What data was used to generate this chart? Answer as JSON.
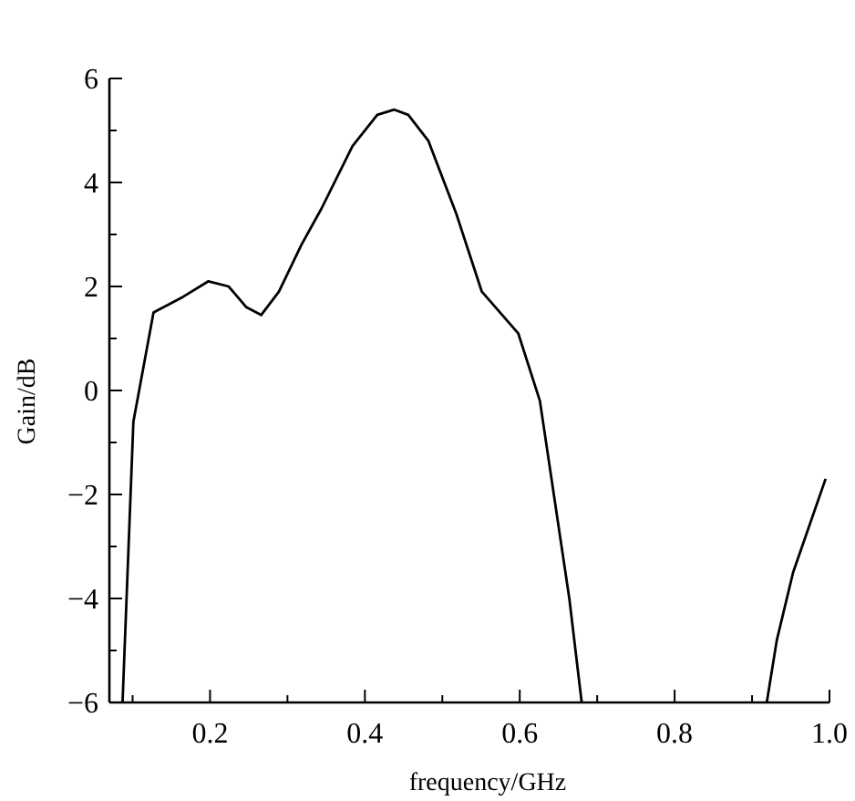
{
  "chart_data": {
    "type": "line",
    "xlabel": "frequency/GHz",
    "ylabel": "Gain/dB",
    "x": [
      0.087,
      0.101,
      0.127,
      0.165,
      0.198,
      0.224,
      0.247,
      0.266,
      0.289,
      0.318,
      0.344,
      0.384,
      0.416,
      0.438,
      0.456,
      0.482,
      0.518,
      0.551,
      0.598,
      0.626,
      0.64,
      0.664,
      0.68,
      0.8,
      0.919,
      0.932,
      0.953,
      0.995
    ],
    "values": [
      -6,
      -0.6,
      1.5,
      1.8,
      2.1,
      2.0,
      1.6,
      1.45,
      1.9,
      2.8,
      3.5,
      4.7,
      5.3,
      5.4,
      5.3,
      4.8,
      3.4,
      1.9,
      1.1,
      -0.2,
      -1.6,
      -4.0,
      -6,
      null,
      -6,
      -4.8,
      -3.5,
      -1.7
    ],
    "color": "#000000",
    "marker": "none",
    "line_style": "solid",
    "grid": false,
    "xlim": [
      0.07,
      1.0
    ],
    "xticks": [
      {
        "value": 0.1,
        "label": null
      },
      0.2,
      {
        "value": 0.3,
        "label": null
      },
      0.4,
      {
        "value": 0.5,
        "label": null
      },
      0.6,
      {
        "value": 0.7,
        "label": null
      },
      0.8,
      {
        "value": 0.9,
        "label": null
      },
      {
        "value": 1.0,
        "label": "1.0"
      }
    ],
    "ylim": [
      -6,
      6
    ],
    "yticks": [
      -6,
      {
        "value": -5,
        "label": null
      },
      -4,
      {
        "value": -3,
        "label": null
      },
      -2,
      {
        "value": -1,
        "label": null
      },
      0,
      {
        "value": 1,
        "label": null
      },
      2,
      {
        "value": 3,
        "label": null
      },
      4,
      {
        "value": 5,
        "label": null
      },
      6
    ]
  }
}
